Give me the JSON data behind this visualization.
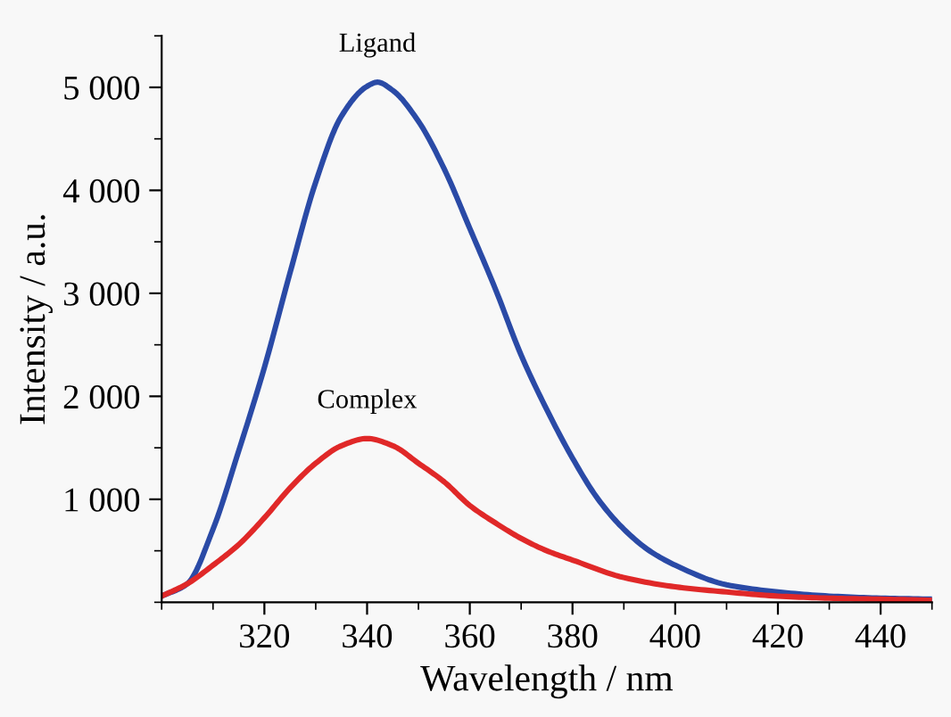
{
  "chart_data": {
    "type": "line",
    "xlabel": "Wavelength / nm",
    "ylabel": "Intensity / a.u.",
    "xlim": [
      300,
      450
    ],
    "xticks": [
      320,
      340,
      360,
      380,
      400,
      420,
      440
    ],
    "ylim": [
      0,
      5500
    ],
    "yticks": [
      {
        "value": 1000,
        "label": "1 000"
      },
      {
        "value": 2000,
        "label": "2 000"
      },
      {
        "value": 3000,
        "label": "3 000"
      },
      {
        "value": 4000,
        "label": "4 000"
      },
      {
        "value": 5000,
        "label": "5 000"
      }
    ],
    "grid": false,
    "legend": false,
    "marker": "none",
    "line_style": "solid",
    "series": [
      {
        "name": "Ligand",
        "color": "#2a4aa6",
        "x": [
          300,
          305,
          310,
          315,
          320,
          325,
          330,
          335,
          340,
          342,
          345,
          350,
          355,
          360,
          365,
          370,
          375,
          380,
          385,
          390,
          395,
          400,
          410,
          420,
          430,
          440,
          450
        ],
        "values": [
          60,
          180,
          710,
          1470,
          2280,
          3200,
          4080,
          4720,
          5010,
          5050,
          4970,
          4670,
          4210,
          3630,
          3040,
          2400,
          1870,
          1400,
          1000,
          710,
          500,
          360,
          170,
          100,
          60,
          40,
          30
        ]
      },
      {
        "name": "Complex",
        "color": "#e02828",
        "x": [
          300,
          305,
          310,
          315,
          320,
          325,
          330,
          335,
          340,
          345,
          350,
          355,
          360,
          365,
          370,
          375,
          380,
          390,
          400,
          410,
          420,
          430,
          440,
          450
        ],
        "values": [
          60,
          180,
          360,
          560,
          820,
          1110,
          1350,
          1520,
          1590,
          1520,
          1350,
          1170,
          940,
          770,
          620,
          500,
          410,
          240,
          150,
          100,
          60,
          40,
          30,
          20
        ]
      }
    ]
  }
}
